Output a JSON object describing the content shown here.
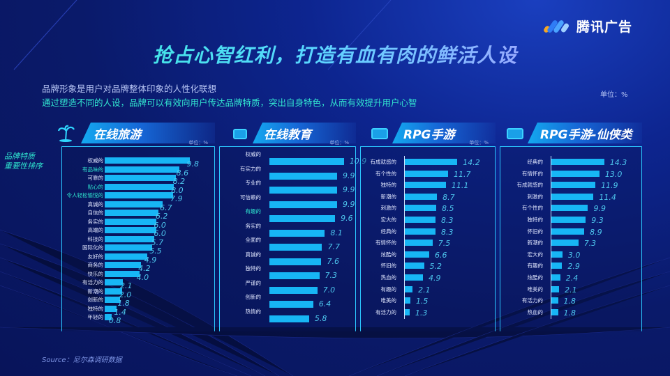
{
  "brand": {
    "name": "腾讯广告"
  },
  "header": {
    "title": "抢占心智红利，打造有血有肉的鲜活人设",
    "subtitle_1": "品牌形象是用户对品牌整体印象的人性化联想",
    "subtitle_2": "通过塑造不同的人设，品牌可以有效向用户传达品牌特质，突出自身特色，从而有效提升用户心智",
    "unit": "单位：%"
  },
  "side_label": {
    "line1": "品牌特质",
    "line2": "重要性排序"
  },
  "source": "Source：尼尔森调研数据",
  "colors": {
    "bar": "#17b6f5",
    "value_text": "#4ec7ee",
    "accent_green": "#2fe6cf",
    "frame": "#2bc8ff"
  },
  "chart_data": [
    {
      "type": "bar",
      "orientation": "horizontal",
      "title": "在线旅游",
      "icon": "palm-tree-icon",
      "unit": "单位：%",
      "categories": [
        "权威的",
        "有品味的",
        "可靠的",
        "贴心的",
        "令人轻松愉悦的",
        "真诚的",
        "自信的",
        "务实的",
        "高端的",
        "科技的",
        "国际化的",
        "友好的",
        "商务的",
        "快乐的",
        "有活力的",
        "新潮的",
        "创新的",
        "独特的",
        "年轻的"
      ],
      "values": [
        9.8,
        8.6,
        8.2,
        8.0,
        7.9,
        6.7,
        6.2,
        6.0,
        6.0,
        5.7,
        5.5,
        4.9,
        4.2,
        4.0,
        2.1,
        2.0,
        1.8,
        1.4,
        0.8
      ],
      "highlighted_categories": [
        "有品味的",
        "贴心的",
        "令人轻松愉悦的"
      ],
      "note": "value labels appear offset one row below bars in the source image"
    },
    {
      "type": "bar",
      "orientation": "horizontal",
      "title": "在线教育",
      "icon": "education-tv-icon",
      "unit": "单位：%",
      "categories": [
        "权威的",
        "有实力的",
        "专业的",
        "可信赖的",
        "有趣的",
        "务实的",
        "全面的",
        "真诚的",
        "独特的",
        "严谨的",
        "创新的",
        "热情的"
      ],
      "values": [
        10.9,
        9.9,
        9.9,
        9.9,
        9.6,
        8.1,
        7.7,
        7.6,
        7.3,
        7.0,
        6.4,
        5.8
      ],
      "highlighted_categories": [
        "有趣的"
      ]
    },
    {
      "type": "bar",
      "orientation": "horizontal",
      "title": "RPG手游",
      "icon": "gamepad-icon",
      "unit": "单位：%",
      "categories": [
        "有成就感的",
        "有个性的",
        "独特的",
        "新潮的",
        "刺激的",
        "宏大的",
        "经典的",
        "有情怀的",
        "炫酷的",
        "怀旧的",
        "热血的",
        "有趣的",
        "唯美的",
        "有活力的"
      ],
      "values": [
        14.2,
        11.7,
        11.1,
        8.7,
        8.5,
        8.3,
        8.3,
        7.5,
        6.6,
        5.2,
        4.9,
        2.1,
        1.5,
        1.3
      ]
    },
    {
      "type": "bar",
      "orientation": "horizontal",
      "title": "RPG手游-仙侠类",
      "icon": "gamepad-icon",
      "unit": "单位：%",
      "categories": [
        "经典的",
        "有情怀的",
        "有成就感的",
        "刺激的",
        "有个性的",
        "独特的",
        "怀旧的",
        "新潮的",
        "宏大的",
        "有趣的",
        "炫酷的",
        "唯美的",
        "有活力的",
        "热血的"
      ],
      "values": [
        14.3,
        13.0,
        11.9,
        11.4,
        9.9,
        9.3,
        8.9,
        7.3,
        3.0,
        2.9,
        2.4,
        2.1,
        1.8,
        1.8
      ]
    }
  ]
}
